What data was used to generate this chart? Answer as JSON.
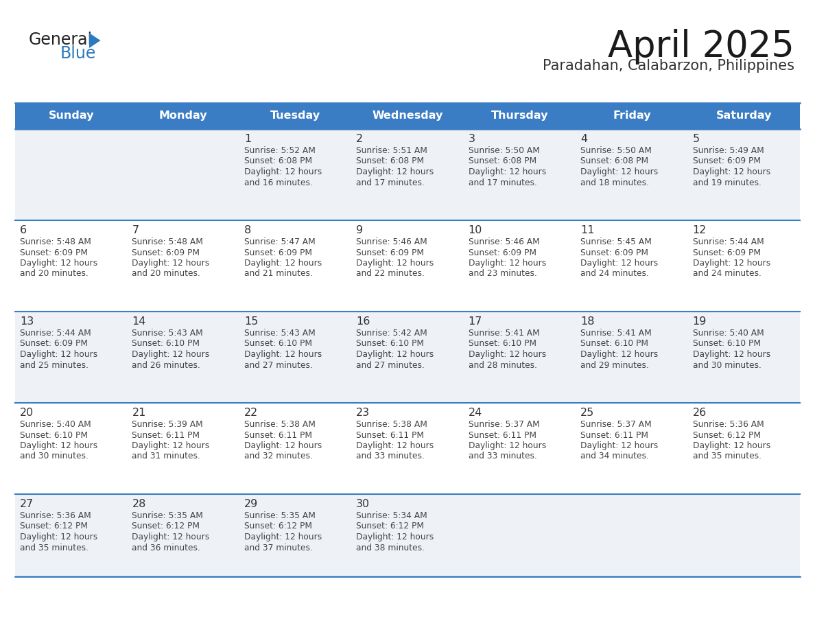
{
  "title": "April 2025",
  "subtitle": "Paradahan, Calabarzon, Philippines",
  "header_bg_color": "#3b7dc4",
  "header_text_color": "#ffffff",
  "cell_bg_light": "#eef2f7",
  "cell_bg_white": "#ffffff",
  "text_color": "#444444",
  "day_number_color": "#333333",
  "line_color": "#3b7dc4",
  "logo_general_color": "#222222",
  "logo_blue_color": "#2a7abf",
  "days_of_week": [
    "Sunday",
    "Monday",
    "Tuesday",
    "Wednesday",
    "Thursday",
    "Friday",
    "Saturday"
  ],
  "calendar_data": [
    [
      {
        "day": "",
        "sunrise": "",
        "sunset": "",
        "daylight_h": "",
        "daylight_m": ""
      },
      {
        "day": "",
        "sunrise": "",
        "sunset": "",
        "daylight_h": "",
        "daylight_m": ""
      },
      {
        "day": "1",
        "sunrise": "5:52 AM",
        "sunset": "6:08 PM",
        "daylight_h": "12",
        "daylight_m": "16"
      },
      {
        "day": "2",
        "sunrise": "5:51 AM",
        "sunset": "6:08 PM",
        "daylight_h": "12",
        "daylight_m": "17"
      },
      {
        "day": "3",
        "sunrise": "5:50 AM",
        "sunset": "6:08 PM",
        "daylight_h": "12",
        "daylight_m": "17"
      },
      {
        "day": "4",
        "sunrise": "5:50 AM",
        "sunset": "6:08 PM",
        "daylight_h": "12",
        "daylight_m": "18"
      },
      {
        "day": "5",
        "sunrise": "5:49 AM",
        "sunset": "6:09 PM",
        "daylight_h": "12",
        "daylight_m": "19"
      }
    ],
    [
      {
        "day": "6",
        "sunrise": "5:48 AM",
        "sunset": "6:09 PM",
        "daylight_h": "12",
        "daylight_m": "20"
      },
      {
        "day": "7",
        "sunrise": "5:48 AM",
        "sunset": "6:09 PM",
        "daylight_h": "12",
        "daylight_m": "20"
      },
      {
        "day": "8",
        "sunrise": "5:47 AM",
        "sunset": "6:09 PM",
        "daylight_h": "12",
        "daylight_m": "21"
      },
      {
        "day": "9",
        "sunrise": "5:46 AM",
        "sunset": "6:09 PM",
        "daylight_h": "12",
        "daylight_m": "22"
      },
      {
        "day": "10",
        "sunrise": "5:46 AM",
        "sunset": "6:09 PM",
        "daylight_h": "12",
        "daylight_m": "23"
      },
      {
        "day": "11",
        "sunrise": "5:45 AM",
        "sunset": "6:09 PM",
        "daylight_h": "12",
        "daylight_m": "24"
      },
      {
        "day": "12",
        "sunrise": "5:44 AM",
        "sunset": "6:09 PM",
        "daylight_h": "12",
        "daylight_m": "24"
      }
    ],
    [
      {
        "day": "13",
        "sunrise": "5:44 AM",
        "sunset": "6:09 PM",
        "daylight_h": "12",
        "daylight_m": "25"
      },
      {
        "day": "14",
        "sunrise": "5:43 AM",
        "sunset": "6:10 PM",
        "daylight_h": "12",
        "daylight_m": "26"
      },
      {
        "day": "15",
        "sunrise": "5:43 AM",
        "sunset": "6:10 PM",
        "daylight_h": "12",
        "daylight_m": "27"
      },
      {
        "day": "16",
        "sunrise": "5:42 AM",
        "sunset": "6:10 PM",
        "daylight_h": "12",
        "daylight_m": "27"
      },
      {
        "day": "17",
        "sunrise": "5:41 AM",
        "sunset": "6:10 PM",
        "daylight_h": "12",
        "daylight_m": "28"
      },
      {
        "day": "18",
        "sunrise": "5:41 AM",
        "sunset": "6:10 PM",
        "daylight_h": "12",
        "daylight_m": "29"
      },
      {
        "day": "19",
        "sunrise": "5:40 AM",
        "sunset": "6:10 PM",
        "daylight_h": "12",
        "daylight_m": "30"
      }
    ],
    [
      {
        "day": "20",
        "sunrise": "5:40 AM",
        "sunset": "6:10 PM",
        "daylight_h": "12",
        "daylight_m": "30"
      },
      {
        "day": "21",
        "sunrise": "5:39 AM",
        "sunset": "6:11 PM",
        "daylight_h": "12",
        "daylight_m": "31"
      },
      {
        "day": "22",
        "sunrise": "5:38 AM",
        "sunset": "6:11 PM",
        "daylight_h": "12",
        "daylight_m": "32"
      },
      {
        "day": "23",
        "sunrise": "5:38 AM",
        "sunset": "6:11 PM",
        "daylight_h": "12",
        "daylight_m": "33"
      },
      {
        "day": "24",
        "sunrise": "5:37 AM",
        "sunset": "6:11 PM",
        "daylight_h": "12",
        "daylight_m": "33"
      },
      {
        "day": "25",
        "sunrise": "5:37 AM",
        "sunset": "6:11 PM",
        "daylight_h": "12",
        "daylight_m": "34"
      },
      {
        "day": "26",
        "sunrise": "5:36 AM",
        "sunset": "6:12 PM",
        "daylight_h": "12",
        "daylight_m": "35"
      }
    ],
    [
      {
        "day": "27",
        "sunrise": "5:36 AM",
        "sunset": "6:12 PM",
        "daylight_h": "12",
        "daylight_m": "35"
      },
      {
        "day": "28",
        "sunrise": "5:35 AM",
        "sunset": "6:12 PM",
        "daylight_h": "12",
        "daylight_m": "36"
      },
      {
        "day": "29",
        "sunrise": "5:35 AM",
        "sunset": "6:12 PM",
        "daylight_h": "12",
        "daylight_m": "37"
      },
      {
        "day": "30",
        "sunrise": "5:34 AM",
        "sunset": "6:12 PM",
        "daylight_h": "12",
        "daylight_m": "38"
      },
      {
        "day": "",
        "sunrise": "",
        "sunset": "",
        "daylight_h": "",
        "daylight_m": ""
      },
      {
        "day": "",
        "sunrise": "",
        "sunset": "",
        "daylight_h": "",
        "daylight_m": ""
      },
      {
        "day": "",
        "sunrise": "",
        "sunset": "",
        "daylight_h": "",
        "daylight_m": ""
      }
    ]
  ]
}
